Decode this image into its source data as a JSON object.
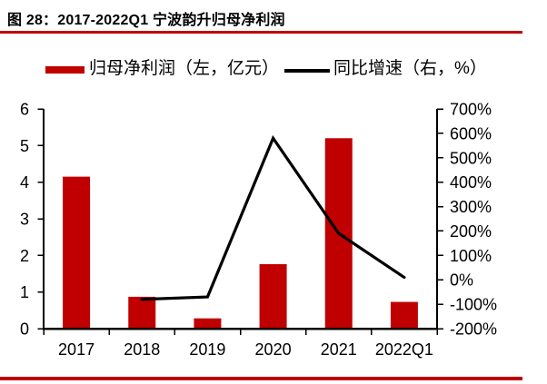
{
  "title": "图 28：2017-2022Q1 宁波韵升归母净利润",
  "accent_color": "#C00000",
  "legend": [
    {
      "label": "归母净利润（左，亿元）",
      "swatch": "bar",
      "color": "#C00000"
    },
    {
      "label": "同比增速（右，%）",
      "swatch": "line",
      "color": "#000000"
    }
  ],
  "chart_data": {
    "type": "combo",
    "title": "2017-2022Q1 宁波韵升归母净利润",
    "categories": [
      "2017",
      "2018",
      "2019",
      "2020",
      "2021",
      "2022Q1"
    ],
    "series": [
      {
        "name": "归母净利润（左，亿元）",
        "type": "bar",
        "axis": "left",
        "color": "#C00000",
        "values": [
          4.15,
          0.87,
          0.28,
          1.76,
          5.2,
          0.73
        ]
      },
      {
        "name": "同比增速（右，%）",
        "type": "line",
        "axis": "right",
        "color": "#000000",
        "values": [
          null,
          -80,
          -70,
          580,
          190,
          10
        ]
      }
    ],
    "left_axis": {
      "min": 0,
      "max": 6,
      "step": 1,
      "tick_labels": [
        "0",
        "1",
        "2",
        "3",
        "4",
        "5",
        "6"
      ]
    },
    "right_axis": {
      "min": -200,
      "max": 700,
      "step": 100,
      "tick_labels": [
        "-200%",
        "-100%",
        "0%",
        "100%",
        "200%",
        "300%",
        "400%",
        "500%",
        "600%",
        "700%"
      ]
    },
    "grid": false,
    "legend_position": "top"
  }
}
